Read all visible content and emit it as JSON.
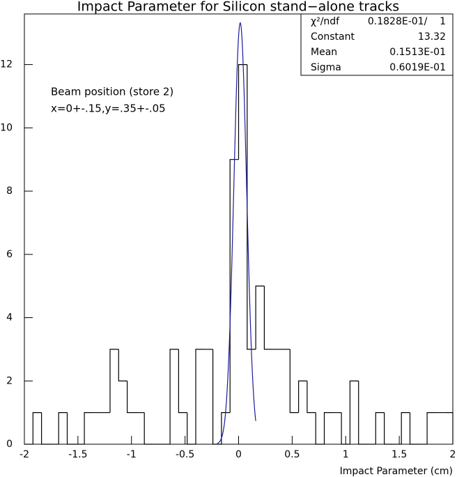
{
  "chart_data": {
    "type": "histogram",
    "title": "Impact Parameter for Silicon stand−alone tracks",
    "x_label": "Impact Parameter (cm)",
    "annotations": [
      "Beam position (store 2)",
      "x=0+-.15,y=.35+-.05"
    ],
    "bins": [
      -2,
      -1.92,
      -1.84,
      -1.76,
      -1.68,
      -1.6,
      -1.52,
      -1.44,
      -1.36,
      -1.28,
      -1.2,
      -1.12,
      -1.04,
      -0.96,
      -0.88,
      -0.8,
      -0.72,
      -0.64,
      -0.56,
      -0.48,
      -0.4,
      -0.32,
      -0.24,
      -0.16,
      -0.08,
      0,
      0.08,
      0.16,
      0.24,
      0.32,
      0.4,
      0.48,
      0.56,
      0.64,
      0.72,
      0.8,
      0.88,
      0.96,
      1.04,
      1.12,
      1.2,
      1.28,
      1.36,
      1.44,
      1.52,
      1.6,
      1.68,
      1.76,
      1.84,
      1.92,
      2
    ],
    "values": [
      0,
      1,
      0,
      0,
      1,
      0,
      0,
      1,
      1,
      1,
      3,
      2,
      1,
      1,
      0,
      0,
      0,
      3,
      1,
      0,
      3,
      3,
      0,
      1,
      9,
      12,
      3,
      5,
      3,
      3,
      3,
      1,
      2,
      1,
      0,
      1,
      1,
      0,
      2,
      0,
      0,
      1,
      0,
      0,
      1,
      0,
      0,
      1,
      1,
      1
    ],
    "color": "#000000",
    "fit": {
      "constant": 13.32,
      "mean": 0.01513,
      "sigma": 0.06019,
      "xrange": [
        -0.2,
        0.16
      ],
      "color": "#1a1aa0"
    },
    "stats": [
      {
        "label": "χ²/ndf",
        "value": "0.1828E-01/    1"
      },
      {
        "label": "Constant",
        "value": "13.32"
      },
      {
        "label": "Mean",
        "value": "0.1513E-01"
      },
      {
        "label": "Sigma",
        "value": "0.6019E-01"
      }
    ],
    "xlim": [
      -2,
      2
    ],
    "ylim": [
      0,
      13.6
    ],
    "xticks": [
      -2,
      -1.5,
      -1,
      -0.5,
      0,
      0.5,
      1,
      1.5,
      2
    ],
    "yticks": [
      0,
      2,
      4,
      6,
      8,
      10,
      12
    ]
  }
}
